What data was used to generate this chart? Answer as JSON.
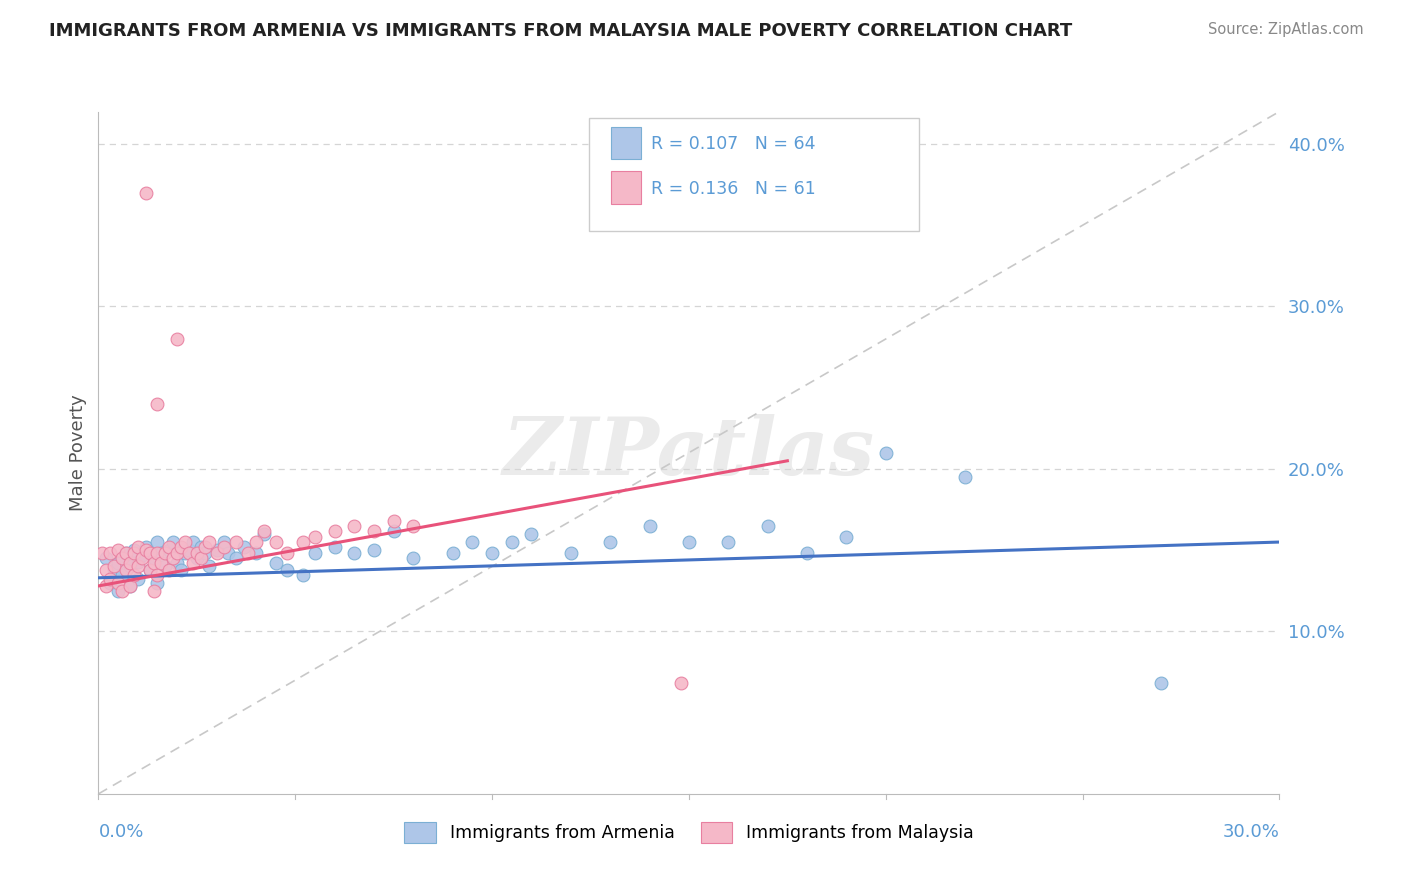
{
  "title": "IMMIGRANTS FROM ARMENIA VS IMMIGRANTS FROM MALAYSIA MALE POVERTY CORRELATION CHART",
  "source": "Source: ZipAtlas.com",
  "ylabel": "Male Poverty",
  "xlim": [
    0.0,
    0.3
  ],
  "ylim": [
    0.0,
    0.42
  ],
  "armenia_color": "#aec6e8",
  "armenia_edge_color": "#7bafd4",
  "malaysia_color": "#f5b8c8",
  "malaysia_edge_color": "#e87fa0",
  "armenia_trend_color": "#4472c4",
  "malaysia_trend_color": "#e8527a",
  "diagonal_color": "#c8c8c8",
  "grid_color": "#d5d5d5",
  "watermark_color": "#e0e0e0",
  "right_axis_color": "#5b9bd5",
  "legend_R_color": "#5b9bd5",
  "legend_N_color": "#5b9bd5",
  "legend_label_color": "#333333",
  "title_color": "#222222",
  "source_color": "#888888",
  "ylabel_color": "#555555",
  "armenia_trend_x": [
    0.0,
    0.3
  ],
  "armenia_trend_y": [
    0.133,
    0.155
  ],
  "malaysia_trend_x": [
    0.0,
    0.175
  ],
  "malaysia_trend_y": [
    0.128,
    0.205
  ]
}
